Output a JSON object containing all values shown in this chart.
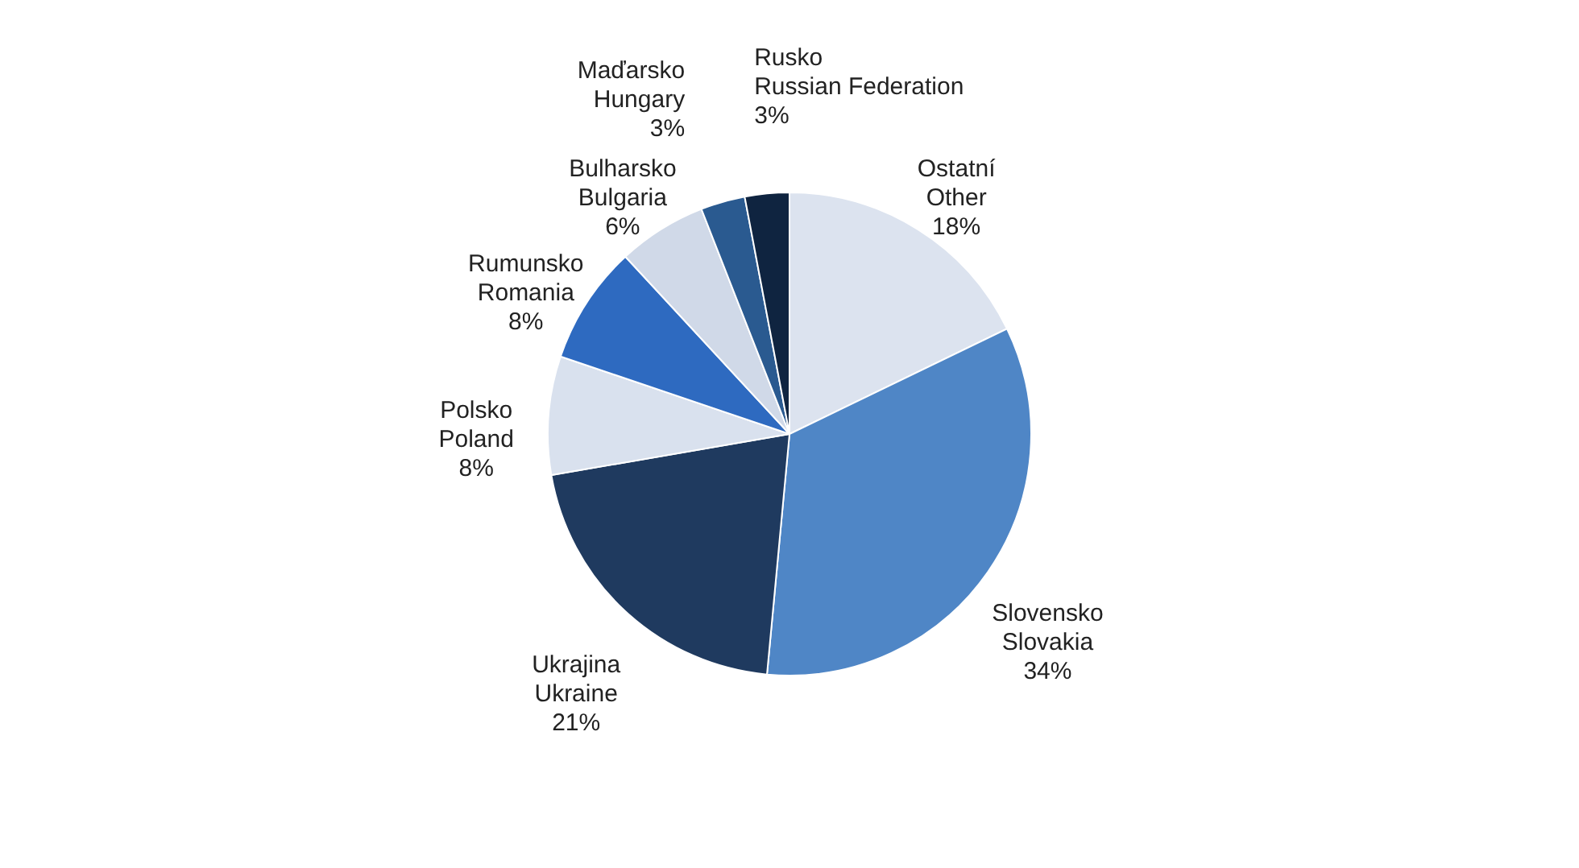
{
  "chart_data": {
    "type": "pie",
    "categories": [
      "Ostatní\nOther",
      "Slovensko\nSlovakia",
      "Ukrajina\nUkraine",
      "Polsko\nPoland",
      "Rumunsko\nRomania",
      "Bulharsko\nBulgaria",
      "Maďarsko\nHungary",
      "Rusko\nRussian Federation"
    ],
    "values": [
      18,
      34,
      21,
      8,
      8,
      6,
      3,
      3
    ],
    "value_labels": [
      "18%",
      "34%",
      "21%",
      "8%",
      "8%",
      "6%",
      "3%",
      "3%"
    ],
    "colors": [
      "#dce3ef",
      "#4f86c6",
      "#1f3a5f",
      "#d9e1ee",
      "#2e6ac0",
      "#d0d9e8",
      "#2a5a90",
      "#0f2440"
    ]
  }
}
